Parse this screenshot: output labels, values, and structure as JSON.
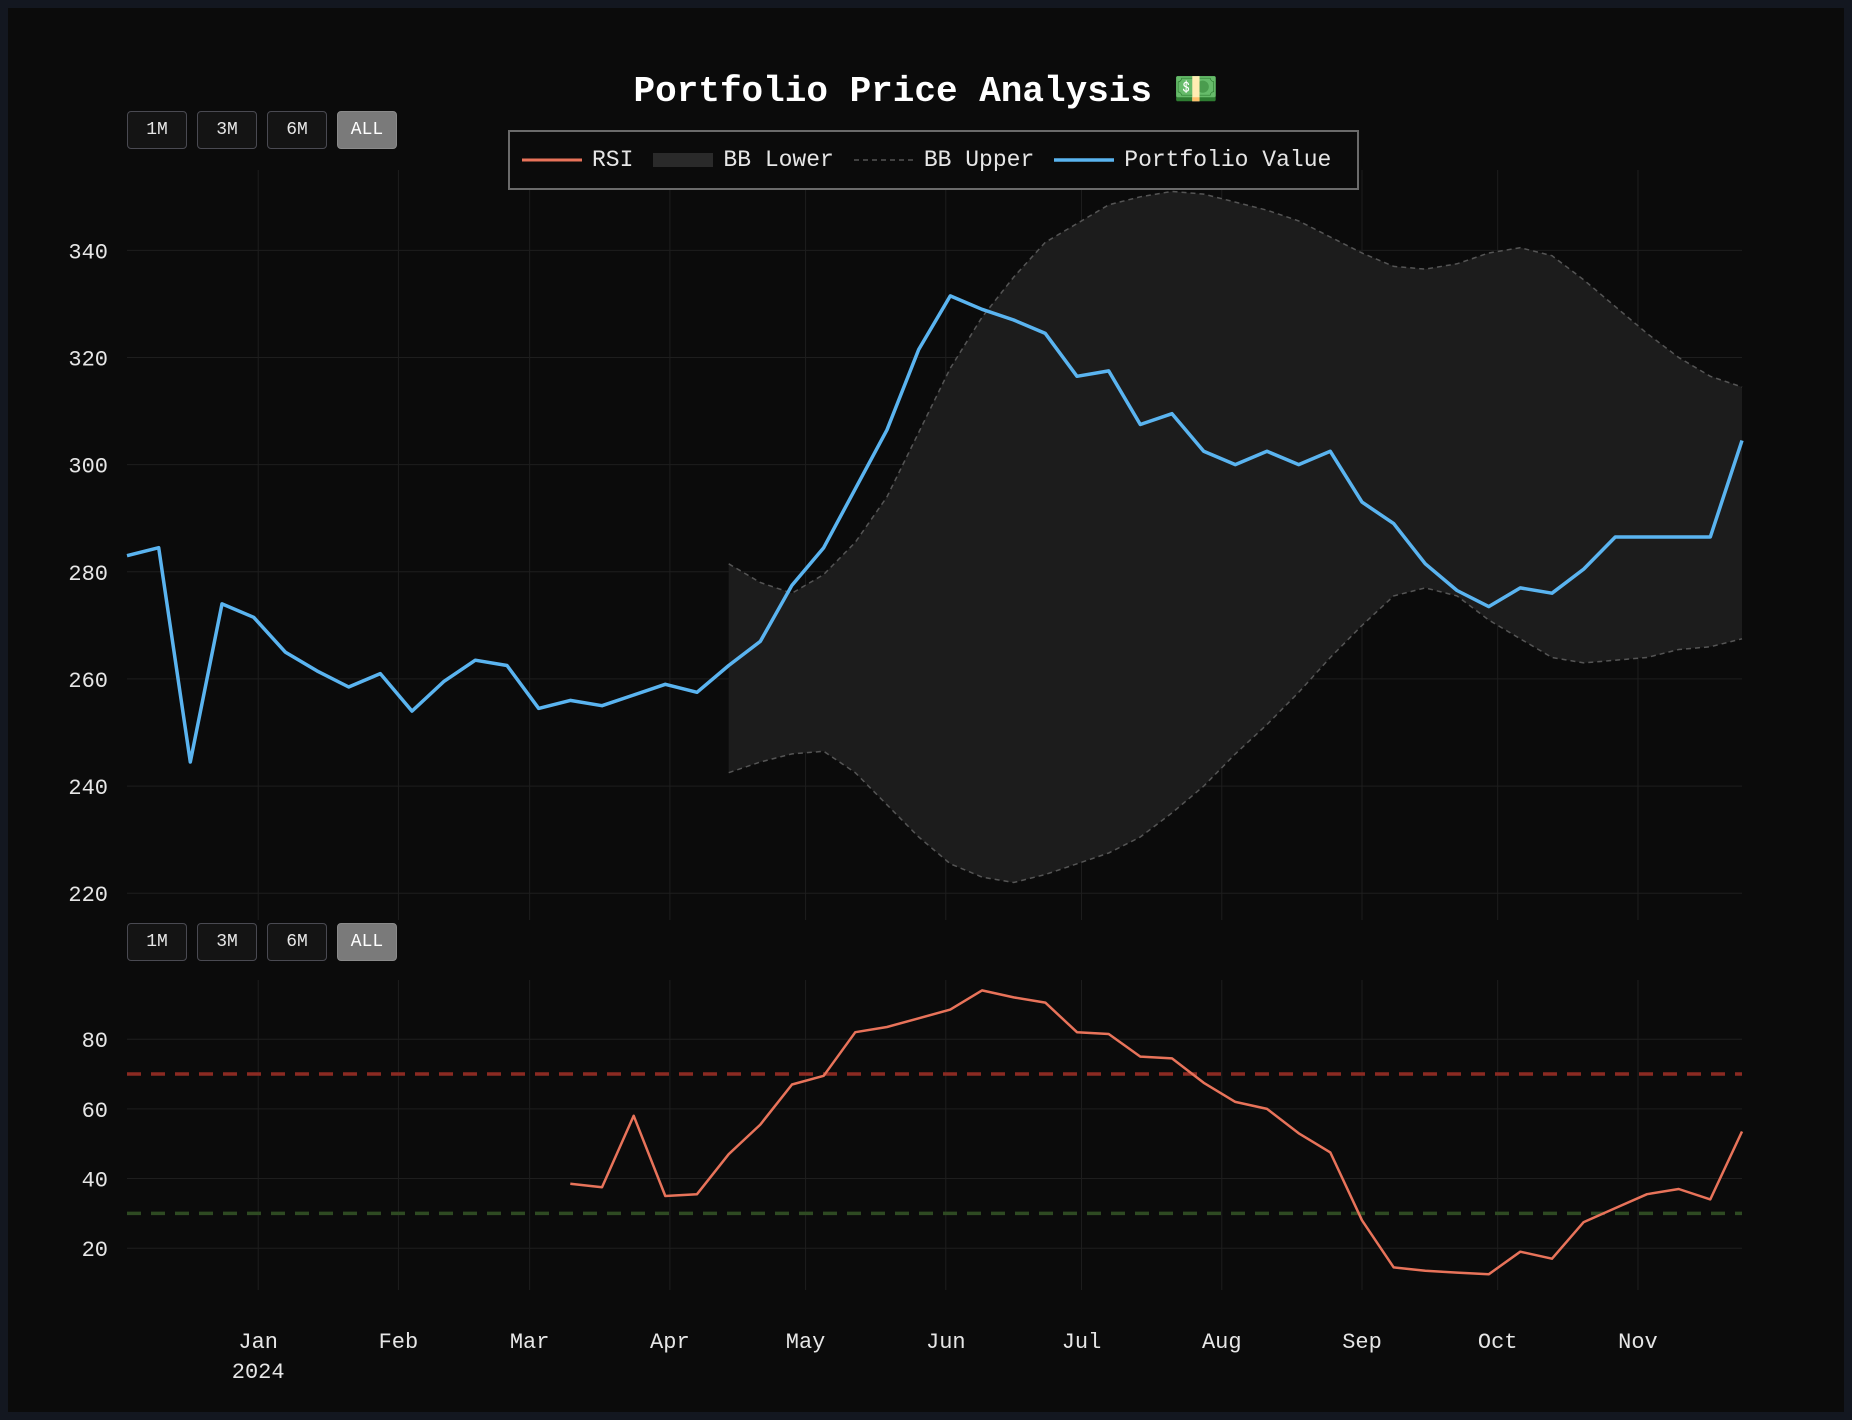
{
  "title": "Portfolio Price Analysis 💵",
  "range_buttons": {
    "top": [
      {
        "label": "1M",
        "active": false
      },
      {
        "label": "3M",
        "active": false
      },
      {
        "label": "6M",
        "active": false
      },
      {
        "label": "ALL",
        "active": true
      }
    ],
    "bottom": [
      {
        "label": "1M",
        "active": false
      },
      {
        "label": "3M",
        "active": false
      },
      {
        "label": "6M",
        "active": false
      },
      {
        "label": "ALL",
        "active": true
      }
    ]
  },
  "legend": [
    {
      "label": "RSI",
      "style": "line",
      "color": "#e8735a"
    },
    {
      "label": "BB Lower",
      "style": "band",
      "color": "#2a2a2a"
    },
    {
      "label": "BB Upper",
      "style": "dashed",
      "color": "#555555"
    },
    {
      "label": "Portfolio Value",
      "style": "line",
      "color": "#5ab4f0"
    }
  ],
  "colors": {
    "background": "#0b0b0b",
    "grid": "#1e1e1e",
    "axis_text": "#e6e6e6",
    "portfolio": "#5ab4f0",
    "rsi": "#e8735a",
    "bb_band": "#1c1c1c",
    "bb_line": "#555555",
    "overbought": "#8b2a22",
    "oversold": "#2e4a22"
  },
  "chart_data": [
    {
      "type": "line",
      "name": "price-panel",
      "x": [
        "2023-12-03",
        "2023-12-10",
        "2023-12-17",
        "2023-12-24",
        "2023-12-31",
        "2024-01-07",
        "2024-01-14",
        "2024-01-21",
        "2024-01-28",
        "2024-02-04",
        "2024-02-11",
        "2024-02-18",
        "2024-02-25",
        "2024-03-03",
        "2024-03-10",
        "2024-03-17",
        "2024-03-24",
        "2024-03-31",
        "2024-04-07",
        "2024-04-14",
        "2024-04-21",
        "2024-04-28",
        "2024-05-05",
        "2024-05-12",
        "2024-05-19",
        "2024-05-26",
        "2024-06-02",
        "2024-06-09",
        "2024-06-16",
        "2024-06-23",
        "2024-06-30",
        "2024-07-07",
        "2024-07-14",
        "2024-07-21",
        "2024-07-28",
        "2024-08-04",
        "2024-08-11",
        "2024-08-18",
        "2024-08-25",
        "2024-09-01",
        "2024-09-08",
        "2024-09-15",
        "2024-09-22",
        "2024-09-29",
        "2024-10-06",
        "2024-10-13",
        "2024-10-20",
        "2024-10-27",
        "2024-11-03",
        "2024-11-10",
        "2024-11-17",
        "2024-11-24"
      ],
      "series": [
        {
          "name": "Portfolio Value",
          "values": [
            283,
            284.5,
            244.5,
            274,
            271.5,
            265,
            261.5,
            258.5,
            261,
            254,
            259.5,
            263.5,
            262.5,
            254.5,
            256,
            255,
            257,
            259,
            257.5,
            262.5,
            267,
            277.5,
            284.5,
            295.5,
            306.5,
            321.5,
            331.5,
            329,
            327,
            324.5,
            316.5,
            317.5,
            307.5,
            309.5,
            302.5,
            300,
            302.5,
            300,
            302.5,
            293,
            289,
            281.5,
            276.5,
            273.5,
            277,
            276,
            280.5,
            286.5,
            286.5,
            286.5,
            286.5,
            304.5
          ]
        },
        {
          "name": "BB Upper",
          "values": [
            null,
            null,
            null,
            null,
            null,
            null,
            null,
            null,
            null,
            null,
            null,
            null,
            null,
            null,
            null,
            null,
            null,
            null,
            null,
            281.5,
            278,
            276,
            279.5,
            285.5,
            294,
            306,
            318,
            327.5,
            335,
            341.5,
            345,
            348.5,
            350,
            351,
            350.5,
            349,
            347.5,
            345.5,
            342.5,
            339.5,
            337,
            336.5,
            337.5,
            339.5,
            340.5,
            339,
            334.5,
            329.5,
            324.5,
            320,
            316.5,
            314.5
          ]
        },
        {
          "name": "BB Lower",
          "values": [
            null,
            null,
            null,
            null,
            null,
            null,
            null,
            null,
            null,
            null,
            null,
            null,
            null,
            null,
            null,
            null,
            null,
            null,
            null,
            242.5,
            244.5,
            246,
            246.5,
            242.5,
            236.5,
            230.5,
            225.5,
            223,
            222,
            223.5,
            225.5,
            227.5,
            230.5,
            235,
            240,
            246,
            251.5,
            257.5,
            264,
            270,
            275.5,
            277,
            275.5,
            271,
            267.5,
            264,
            263,
            263.5,
            264,
            265.5,
            266,
            267.5
          ]
        }
      ],
      "ylim": [
        215,
        355
      ],
      "yticks": [
        220,
        240,
        260,
        280,
        300,
        320,
        340
      ]
    },
    {
      "type": "line",
      "name": "rsi-panel",
      "x": [
        "2023-12-03",
        "2023-12-10",
        "2023-12-17",
        "2023-12-24",
        "2023-12-31",
        "2024-01-07",
        "2024-01-14",
        "2024-01-21",
        "2024-01-28",
        "2024-02-04",
        "2024-02-11",
        "2024-02-18",
        "2024-02-25",
        "2024-03-03",
        "2024-03-10",
        "2024-03-17",
        "2024-03-24",
        "2024-03-31",
        "2024-04-07",
        "2024-04-14",
        "2024-04-21",
        "2024-04-28",
        "2024-05-05",
        "2024-05-12",
        "2024-05-19",
        "2024-05-26",
        "2024-06-02",
        "2024-06-09",
        "2024-06-16",
        "2024-06-23",
        "2024-06-30",
        "2024-07-07",
        "2024-07-14",
        "2024-07-21",
        "2024-07-28",
        "2024-08-04",
        "2024-08-11",
        "2024-08-18",
        "2024-08-25",
        "2024-09-01",
        "2024-09-08",
        "2024-09-15",
        "2024-09-22",
        "2024-09-29",
        "2024-10-06",
        "2024-10-13",
        "2024-10-20",
        "2024-10-27",
        "2024-11-03",
        "2024-11-10",
        "2024-11-17",
        "2024-11-24"
      ],
      "series": [
        {
          "name": "RSI",
          "values": [
            null,
            null,
            null,
            null,
            null,
            null,
            null,
            null,
            null,
            null,
            null,
            null,
            null,
            null,
            38.5,
            37.5,
            58,
            35,
            35.5,
            47,
            55.5,
            67,
            69.5,
            82,
            83.5,
            86,
            88.5,
            94,
            92,
            90.5,
            82,
            81.5,
            75,
            74.5,
            67.5,
            62,
            60,
            53,
            47.5,
            28,
            14.5,
            13.5,
            13,
            12.5,
            19,
            17,
            27.5,
            31.5,
            35.5,
            37,
            34,
            53.5
          ]
        }
      ],
      "reference_lines": [
        70,
        30
      ],
      "ylim": [
        8,
        97
      ],
      "yticks": [
        20,
        40,
        60,
        80
      ]
    }
  ],
  "x_axis": {
    "ticks": [
      {
        "label": "Jan",
        "date": "2024-01-01"
      },
      {
        "label": "Feb",
        "date": "2024-02-01"
      },
      {
        "label": "Mar",
        "date": "2024-03-01"
      },
      {
        "label": "Apr",
        "date": "2024-04-01"
      },
      {
        "label": "May",
        "date": "2024-05-01"
      },
      {
        "label": "Jun",
        "date": "2024-06-01"
      },
      {
        "label": "Jul",
        "date": "2024-07-01"
      },
      {
        "label": "Aug",
        "date": "2024-08-01"
      },
      {
        "label": "Sep",
        "date": "2024-09-01"
      },
      {
        "label": "Oct",
        "date": "2024-10-01"
      },
      {
        "label": "Nov",
        "date": "2024-11-01"
      }
    ],
    "year_label": "2024"
  }
}
